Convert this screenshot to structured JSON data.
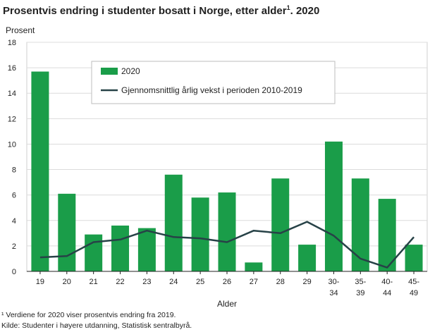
{
  "title": "Prosentvis endring i studenter bosatt i Norge, etter alder",
  "title_sup": "1",
  "title_suffix": ". 2020",
  "footnotes": [
    "¹ Verdiene for 2020 viser prosentvis endring fra 2019.",
    "Kilde: Studenter i høyere utdanning, Statistisk sentralbyrå."
  ],
  "chart_data": {
    "type": "bar",
    "ylabel": "Prosent",
    "xlabel": "Alder",
    "ylim": [
      0,
      18
    ],
    "yticks": [
      0,
      2,
      4,
      6,
      8,
      10,
      12,
      14,
      16,
      18
    ],
    "categories": [
      "19",
      "20",
      "21",
      "22",
      "23",
      "24",
      "25",
      "26",
      "27",
      "28",
      "29",
      "30-34",
      "35-39",
      "40-44",
      "45-49"
    ],
    "category_lines": [
      [
        "19"
      ],
      [
        "20"
      ],
      [
        "21"
      ],
      [
        "22"
      ],
      [
        "23"
      ],
      [
        "24"
      ],
      [
        "25"
      ],
      [
        "26"
      ],
      [
        "27"
      ],
      [
        "28"
      ],
      [
        "29"
      ],
      [
        "30-",
        "34"
      ],
      [
        "35-",
        "39"
      ],
      [
        "40-",
        "44"
      ],
      [
        "45-",
        "49"
      ]
    ],
    "series": [
      {
        "name": "2020",
        "type": "bar",
        "color": "#1a9d49",
        "values": [
          15.7,
          6.1,
          2.9,
          3.6,
          3.4,
          7.6,
          5.8,
          6.2,
          0.7,
          7.3,
          2.1,
          10.2,
          7.3,
          5.7,
          2.1
        ]
      },
      {
        "name": "Gjennomsnittlig årlig vekst i perioden 2010-2019",
        "type": "line",
        "color": "#274247",
        "values": [
          1.1,
          1.2,
          2.3,
          2.5,
          3.2,
          2.7,
          2.6,
          2.3,
          3.2,
          3.0,
          3.9,
          2.8,
          1.0,
          0.3,
          2.7
        ]
      }
    ],
    "grid": "y",
    "legend_position": "top-center"
  }
}
